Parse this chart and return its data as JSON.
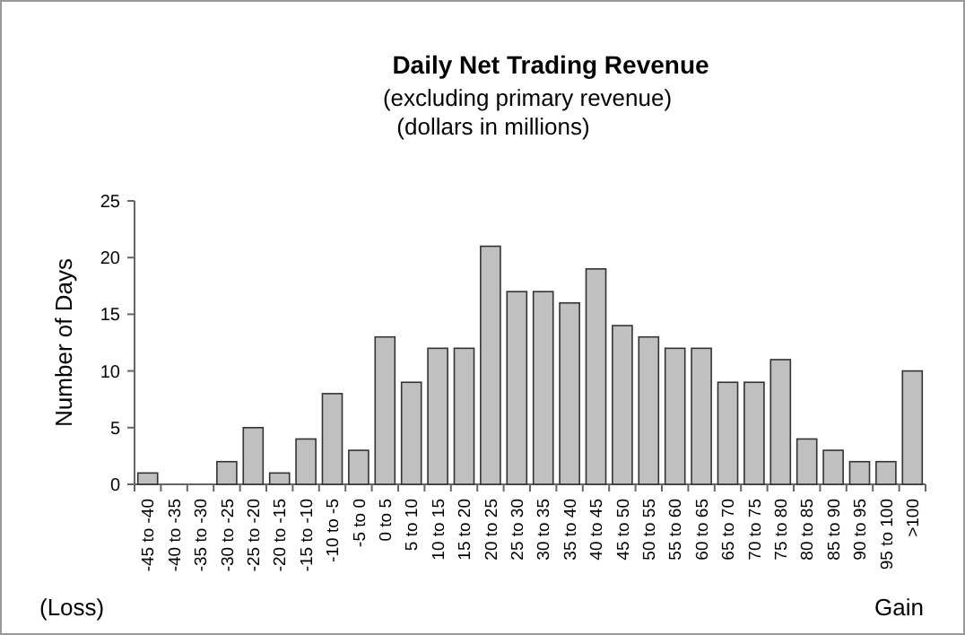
{
  "chart_data": {
    "type": "bar",
    "title": "Daily Net Trading Revenue",
    "subtitle": "(excluding primary revenue)\n(dollars in millions)",
    "ylabel": "Number of Days",
    "categories": [
      "-45 to -40",
      "-40 to -35",
      "-35 to -30",
      "-30 to -25",
      "-25 to -20",
      "-20 to -15",
      "-15 to -10",
      "-10 to -5",
      "-5 to 0",
      "0 to 5",
      "5 to 10",
      "10 to 15",
      "15 to 20",
      "20 to 25",
      "25 to 30",
      "30 to 35",
      "35 to 40",
      "40 to 45",
      "45 to 50",
      "50 to 55",
      "55 to 60",
      "60 to 65",
      "65 to 70",
      "70 to 75",
      "75 to 80",
      "80 to 85",
      "85 to 90",
      "90 to 95",
      "95 to 100",
      ">100"
    ],
    "values": [
      1,
      0,
      0,
      2,
      5,
      1,
      4,
      8,
      3,
      13,
      9,
      12,
      12,
      21,
      17,
      17,
      16,
      19,
      14,
      13,
      12,
      12,
      9,
      9,
      11,
      4,
      3,
      2,
      2,
      10
    ],
    "color": "#c0c0c0",
    "ylim": [
      0,
      25
    ],
    "yticks": [
      0,
      5,
      10,
      15,
      20,
      25
    ],
    "grid": false,
    "annotations": [
      "(Loss)",
      "Gain"
    ]
  }
}
